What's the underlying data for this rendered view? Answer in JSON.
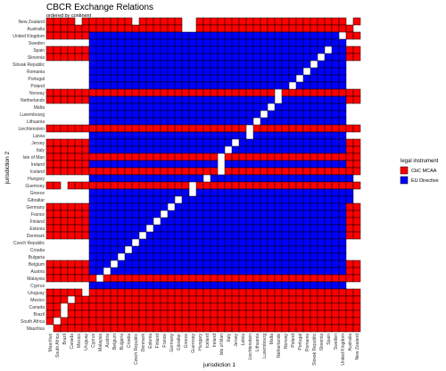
{
  "chart_data": {
    "type": "heatmap",
    "title": "CBCR Exchange Relations",
    "subtitle": "ordered by continent",
    "xlabel": "jurisdiction 1",
    "ylabel": "jurisdiction 2",
    "jurisdictions": [
      "Mauritius",
      "South Africa",
      "Brazil",
      "Canada",
      "Mexico",
      "Uruguay",
      "Cyprus",
      "Malaysia",
      "Austria",
      "Belgium",
      "Bulgaria",
      "Croatia",
      "Czech Republic",
      "Denmark",
      "Estonia",
      "Finland",
      "France",
      "Germany",
      "Gibraltar",
      "Greece",
      "Guernsey",
      "Hungary",
      "Iceland",
      "Ireland",
      "Isle of Man",
      "Italy",
      "Jersey",
      "Latvia",
      "Liechtenstein",
      "Lithuania",
      "Luxembourg",
      "Malta",
      "Netherlands",
      "Norway",
      "Poland",
      "Portugal",
      "Romania",
      "Slovak Republic",
      "Slovenia",
      "Spain",
      "Sweden",
      "United Kingdom",
      "Australia",
      "New Zealand"
    ],
    "cells_note": "rows listed top (New Zealand) to bottom (Mauritius); columns follow jurisdictions order; R = CbC MCAA, B = EU Directive, . = no relation",
    "cells": [
      "RRRR.RRRRRRR.RRRRRR..RRRRRRRRRRRRRRRRRRRRR.R",
      "RRRRRRRRRRRRRRRRRRR..RRRRRRRRRRRRRRRRRRRRRR.",
      "RRRRRRBBBBBBBBBBBBBBBBBBBBBBBBBBBBBBBBBBB.RR",
      "......BBBBBBBBBBBBBBBBBBBBBBBBBBBBBBBBBBBB..",
      "RRRRRRBBBBBBBBBBBBBBBBBBBBBBBBBBBBBBBBB.BBRR",
      "RRRRRRBBBBBBBBBBBBBBBBBBBBBBBBBBBBBBBB.BBBRR",
      "......BBBBBBBBBBBBBBBBBBBBBBBBBBBBBBB.BBBB..",
      "......BBBBBBBBBBBBBBBBBBBBBBBBBBBBBB.BBBBB..",
      "......BBBBBBBBBBBBBBBBBBBBBBBBBBBBB.BBBBBB..",
      "......BBBBBBBBBBBBBBBBBBBBBBBBBBBB.BBBBBBB..",
      "RRRRRRRRRRRRRRRRRRRRRRRRRRRRRRRR.RRRRRRRRRRR",
      "RRRRRRBBBBBBBBBBBBBBBBBBBBBBBBBB.BBBBBBBBBRR",
      "......BBBBBBBBBBBBBBBBBBBBBBBBB.BBBBBBBBBB..",
      "......BBBBBBBBBBBBBBBBBBBBBBBB.BBBBBBBBBBB..",
      "......BBBBBBBBBBBBBBBBBBBBBBB.BBBBBBBBBBBB..",
      "RRRRRRRRRRRRRRRRRRRRRRRRRRRR.RRRRRRRRRRRRRRR",
      "......BBBBBBBBBBBBBBBBBBBBBB.BBBBBBBBBBBBB..",
      "RRRRRRBBBBBBBBBBBBBBBBBBBB.BBBBBBBBBBBBBBBRR",
      "RRRRRRBBBBBBBBBBBBBBBBBBB.BBBBBBBBBBBBBBBBRR",
      "RRRRRRRRRRRRRRRRRRRRRRRR.RRRRRRRRRRRRRRRRRRR",
      "RRRRRRBBBBBBBBBBBBBBBBBB.BBBBBBBBBBBBBBBBBRR",
      "RRRRRRRRRRRRRRRRRRRRRRRR.RRRRRRRRRRRRRRRRRRR",
      "......BBBBBBBBBBBBBBBB.BBBBBBBBBBBBBBBBBBBB.",
      "RR.RRRRRRRRRRRRRRRRR.RRRRRRRRRRRRRRRRRRRRRRR",
      "......BBBBBBBBBBBBBB.BBBBBBBBBBBBBBBBBBBBBB.",
      "......BBBBBBBBBBBB.BBBBBBBBBBBBBBBBBBBBBBBB.",
      "RRRRRRBBBBBBBBBBB.BBBBBBBBBBBBBBBBBBBBBBBBRR",
      "RRRRRRBBBBBBBBBB.BBBBBBBBBBBBBBBBBBBBBBBBBRR",
      "RRRRRRBBBBBBBBB.BBBBBBBBBBBBBBBBBBBBBBBBBBRR",
      "RRRRRRBBBBBBBB.BBBBBBBBBBBBBBBBBBBBBBBBBBBRR",
      "RRRRRRBBBBBBB.BBBBBBBBBBBBBBBBBBBBBBBBBBBBRR",
      "......BBBBBB.BBBBBBBBBBBBBBBBBBBBBBBBBBBBB..",
      "......BBBBB.BBBBBBBBBBBBBBBBBBBBBBBBBBBBBB..",
      "......BBBB.BBBBBBBBBBBBBBBBBBBBBBBBBBBBBBB..",
      "RRRRRRBBB.BBBBBBBBBBBBBBBBBBBBBBBBBBBBBBBBRR",
      "RRRRRRBB.BBBBBBBBBBBBBBBBBBBBBBBBBBBBBBBBBRR",
      "RRRRRRR.RRRRRRRRRRRRRRRRRRRRRRRRRRRRRRRRRRRR",
      "......BBBBBBBBBBBBBBBBBBBBBBBBBBBBBBBBBBBB..",
      "RRRRR.RRRRRRRRRRRRRRRRRRRRRRRRRRRRRRRRRRRRRR",
      "RRR.RRRRRRRRRRRRRRRRRRRRRRRRRRRRRRRRRRRRRRRR",
      "RR.RRRRRRRRRRRRRRRRRRRRRRRRRRRRRRRRRRRRRRRRR",
      "RR.RRRRRRRRRRRRRRRRRRRRRRRRRRRRRRRRRRRRRRRRR",
      "R.RRRRRRRRRRRRRRRRRRRRRRRRRRRRRRRRRRRRRRRRRR",
      ".RRRRRRRRRRRRRRRRRRRRRRRRRRRRRRRRRRRRRRRRRRR"
    ],
    "legend": {
      "title": "legal instrument",
      "placement": "right",
      "items": [
        {
          "code": "R",
          "label": "CbC MCAA",
          "color": "#ff0000"
        },
        {
          "code": "B",
          "label": "EU Directive",
          "color": "#0000ff"
        }
      ]
    },
    "grid": true
  }
}
